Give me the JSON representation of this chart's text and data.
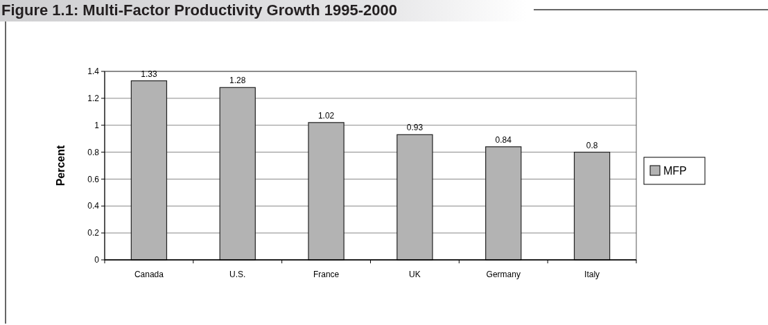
{
  "chart_data": {
    "type": "bar",
    "title": "Figure 1.1: Multi-Factor Productivity Growth 1995-2000",
    "ylabel": "Percent",
    "categories": [
      "Canada",
      "U.S.",
      "France",
      "UK",
      "Germany",
      "Italy"
    ],
    "series": [
      {
        "name": "MFP",
        "color": "#b3b3b3",
        "values": [
          1.33,
          1.28,
          1.02,
          0.93,
          0.84,
          0.8
        ]
      }
    ],
    "ylim": [
      0,
      1.4
    ],
    "yticks": [
      0,
      0.2,
      0.4,
      0.6,
      0.8,
      1,
      1.2,
      1.4
    ],
    "grid": "y",
    "legend": "right",
    "data_labels": true
  }
}
